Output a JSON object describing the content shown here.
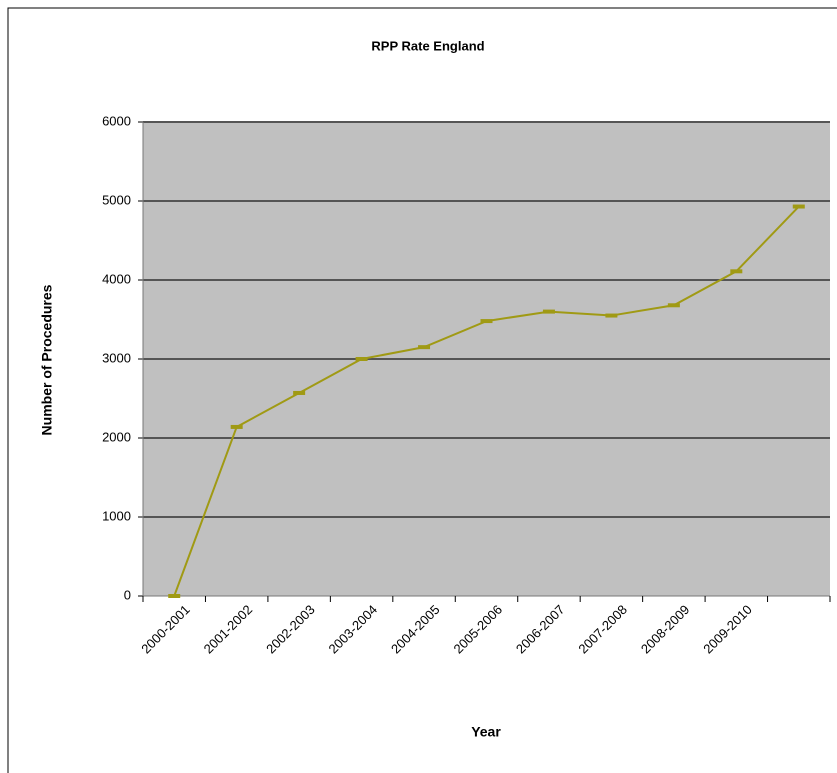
{
  "chart_data": {
    "type": "line",
    "title": "RPP Rate England",
    "x_label": "Year",
    "y_label": "Number of Procedures",
    "categories": [
      "2000-2001",
      "2001-2002",
      "2002-2003",
      "2003-2004",
      "2004-2005",
      "2005-2006",
      "2006-2007",
      "2007-2008",
      "2008-2009",
      "2009-2010",
      null
    ],
    "series": [
      {
        "name": "RPP Rate England",
        "color": "#a09a14",
        "values": [
          0,
          2140,
          2570,
          3000,
          3150,
          3480,
          3600,
          3550,
          3680,
          4110,
          4930
        ]
      }
    ],
    "ylim": [
      0,
      6000
    ],
    "yticks": [
      0,
      1000,
      2000,
      3000,
      4000,
      5000,
      6000
    ],
    "grid": true
  }
}
